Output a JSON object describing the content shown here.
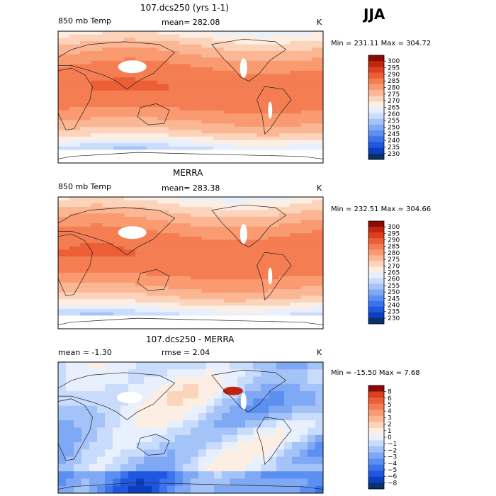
{
  "season": "JJA",
  "units": "K",
  "palette": {
    "temp": [
      "#08306b",
      "#0b3fbf",
      "#1f57e0",
      "#3b73ec",
      "#5c8ff2",
      "#7fa9f5",
      "#a4c3f8",
      "#c9dcfb",
      "#e9f0fd",
      "#fdeee4",
      "#fcd3bb",
      "#fbb693",
      "#f99a70",
      "#f47d52",
      "#ec5e35",
      "#dc3e1e",
      "#c0250e",
      "#8a0a05"
    ],
    "diff": [
      "#08306b",
      "#0b3fbf",
      "#1f57e0",
      "#3b73ec",
      "#5c8ff2",
      "#7fa9f5",
      "#a4c3f8",
      "#c9dcfb",
      "#e9f0fd",
      "#fdeee4",
      "#fcd3bb",
      "#fbb693",
      "#f99a70",
      "#f47d52",
      "#ec5e35",
      "#dc3e1e",
      "#8a0a05"
    ]
  },
  "panels": [
    {
      "title": "107.dcs250 (yrs 1-1)",
      "left_label": "850 mb Temp",
      "center_label": "mean= 282.08",
      "units": "K",
      "minmax": "Min = 231.11  Max = 304.72",
      "kind": "temp"
    },
    {
      "title": "MERRA",
      "left_label": "850 mb Temp",
      "center_label": "mean= 283.38",
      "units": "K",
      "minmax": "Min = 232.51  Max = 304.66",
      "kind": "temp"
    },
    {
      "title": "107.dcs250 - MERRA",
      "left_label": "mean =   -1.30",
      "center_label": "rmse =    2.04",
      "units": "K",
      "minmax": "Min = -15.50  Max =    7.68",
      "kind": "diff"
    }
  ],
  "chart_data": {
    "type": "heatmap",
    "colorbars": [
      {
        "panel": 1,
        "levels": [
          "300",
          "295",
          "290",
          "285",
          "280",
          "275",
          "270",
          "265",
          "260",
          "255",
          "250",
          "245",
          "240",
          "235",
          "230"
        ]
      },
      {
        "panel": 2,
        "levels": [
          "300",
          "295",
          "290",
          "285",
          "280",
          "275",
          "270",
          "265",
          "260",
          "255",
          "250",
          "245",
          "240",
          "235",
          "230"
        ]
      },
      {
        "panel": 3,
        "levels": [
          "8",
          "6",
          "5",
          "4",
          "3",
          "2",
          "1",
          "0",
          "−1",
          "−2",
          "−3",
          "−4",
          "−5",
          "−6",
          "−8"
        ]
      }
    ]
  }
}
